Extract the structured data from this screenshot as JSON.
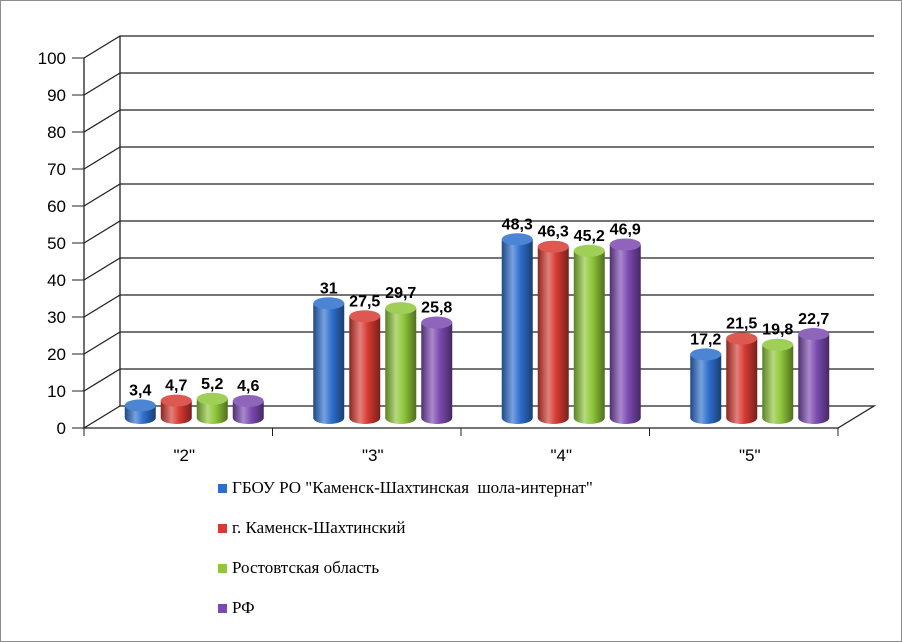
{
  "chart_data": {
    "type": "bar",
    "categories": [
      "\"2\"",
      "\"3\"",
      "\"4\"",
      "\"5\""
    ],
    "series": [
      {
        "name": "ГБОУ РО \"Каменск-Шахтинская  шола-интернат\"",
        "values": [
          3.4,
          31,
          48.3,
          17.2
        ],
        "labels": [
          "3,4",
          "31",
          "48,3",
          "17,2"
        ],
        "color": "#2e6fce"
      },
      {
        "name": "г. Каменск-Шахтинский",
        "values": [
          4.7,
          27.5,
          46.3,
          21.5
        ],
        "labels": [
          "4,7",
          "27,5",
          "46,3",
          "21,5"
        ],
        "color": "#d63a32"
      },
      {
        "name": "Ростовтская область",
        "values": [
          5.2,
          29.7,
          45.2,
          19.8
        ],
        "labels": [
          "5,2",
          "29,7",
          "45,2",
          "19,8"
        ],
        "color": "#8fc63a"
      },
      {
        "name": "РФ",
        "values": [
          4.6,
          25.8,
          46.9,
          22.7
        ],
        "labels": [
          "4,6",
          "25,8",
          "46,9",
          "22,7"
        ],
        "color": "#7b4ab0"
      }
    ],
    "yticks": [
      "0",
      "10",
      "20",
      "30",
      "40",
      "50",
      "60",
      "70",
      "80",
      "90",
      "100"
    ],
    "ylim": [
      0,
      100
    ],
    "grid": true,
    "legend": "bottom",
    "style": "3d-cylinder"
  }
}
